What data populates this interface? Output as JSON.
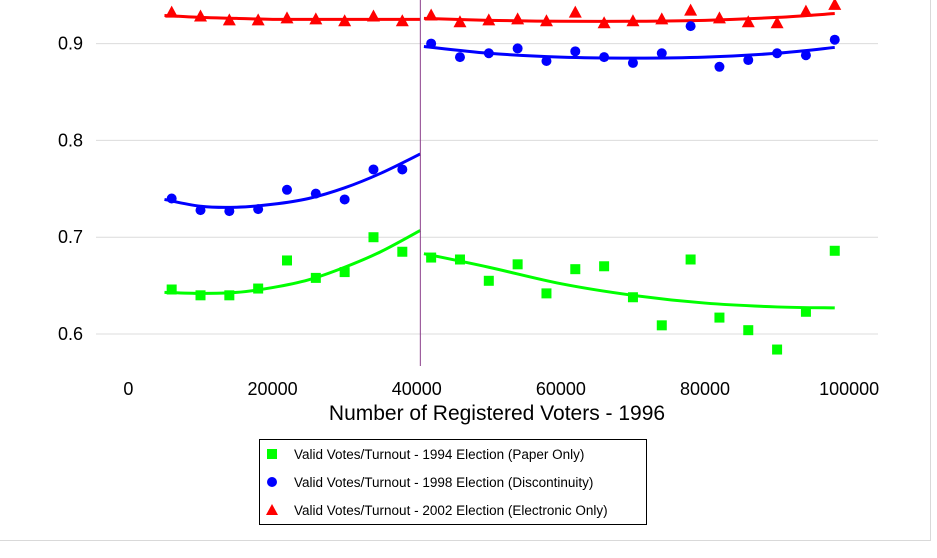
{
  "chart_data": {
    "type": "scatter",
    "xlabel": "Number of Registered Voters - 1996",
    "ylabel": "",
    "xlim": [
      -4500,
      104000
    ],
    "ylim": [
      0.567,
      0.945
    ],
    "x_ticks": [
      0,
      20000,
      40000,
      60000,
      80000,
      100000
    ],
    "x_tick_labels": [
      "0",
      "20000",
      "40000",
      "60000",
      "80000",
      "100000"
    ],
    "y_ticks": [
      0.6,
      0.7,
      0.8,
      0.9
    ],
    "y_tick_labels": [
      "0.6",
      "0.7",
      "0.8",
      "0.9"
    ],
    "grid": "horizontal",
    "discontinuity_x": 40500,
    "legend_position": "bottom",
    "series": [
      {
        "name": "Valid Votes/Turnout - 1994 Election (Paper Only)",
        "color": "#00ff00",
        "marker": "square",
        "points": [
          [
            6000,
            0.646
          ],
          [
            10000,
            0.64
          ],
          [
            14000,
            0.64
          ],
          [
            18000,
            0.647
          ],
          [
            22000,
            0.676
          ],
          [
            26000,
            0.658
          ],
          [
            30000,
            0.664
          ],
          [
            34000,
            0.7
          ],
          [
            38000,
            0.685
          ],
          [
            42000,
            0.679
          ],
          [
            46000,
            0.677
          ],
          [
            50000,
            0.655
          ],
          [
            54000,
            0.672
          ],
          [
            58000,
            0.642
          ],
          [
            62000,
            0.667
          ],
          [
            66000,
            0.67
          ],
          [
            70000,
            0.638
          ],
          [
            74000,
            0.609
          ],
          [
            78000,
            0.677
          ],
          [
            82000,
            0.617
          ],
          [
            86000,
            0.604
          ],
          [
            90000,
            0.584
          ],
          [
            94000,
            0.623
          ],
          [
            98000,
            0.686
          ]
        ],
        "fit_left": [
          [
            5000,
            0.643
          ],
          [
            10000,
            0.642
          ],
          [
            15000,
            0.643
          ],
          [
            20000,
            0.648
          ],
          [
            25000,
            0.656
          ],
          [
            30000,
            0.669
          ],
          [
            35000,
            0.685
          ],
          [
            40500,
            0.707
          ]
        ],
        "fit_right": [
          [
            41000,
            0.683
          ],
          [
            50000,
            0.669
          ],
          [
            60000,
            0.652
          ],
          [
            70000,
            0.64
          ],
          [
            80000,
            0.632
          ],
          [
            90000,
            0.628
          ],
          [
            98000,
            0.627
          ]
        ]
      },
      {
        "name": "Valid Votes/Turnout - 1998 Election (Discontinuity)",
        "color": "#0000ff",
        "marker": "circle",
        "points": [
          [
            6000,
            0.74
          ],
          [
            10000,
            0.728
          ],
          [
            14000,
            0.727
          ],
          [
            18000,
            0.729
          ],
          [
            22000,
            0.749
          ],
          [
            26000,
            0.745
          ],
          [
            30000,
            0.739
          ],
          [
            34000,
            0.77
          ],
          [
            38000,
            0.77
          ],
          [
            42000,
            0.9
          ],
          [
            46000,
            0.886
          ],
          [
            50000,
            0.89
          ],
          [
            54000,
            0.895
          ],
          [
            58000,
            0.882
          ],
          [
            62000,
            0.892
          ],
          [
            66000,
            0.886
          ],
          [
            70000,
            0.88
          ],
          [
            74000,
            0.89
          ],
          [
            78000,
            0.918
          ],
          [
            82000,
            0.876
          ],
          [
            86000,
            0.883
          ],
          [
            90000,
            0.89
          ],
          [
            94000,
            0.888
          ],
          [
            98000,
            0.904
          ]
        ],
        "fit_left": [
          [
            5000,
            0.739
          ],
          [
            10000,
            0.732
          ],
          [
            15000,
            0.731
          ],
          [
            20000,
            0.734
          ],
          [
            25000,
            0.74
          ],
          [
            30000,
            0.751
          ],
          [
            35000,
            0.766
          ],
          [
            40500,
            0.786
          ]
        ],
        "fit_right": [
          [
            41000,
            0.897
          ],
          [
            50000,
            0.89
          ],
          [
            60000,
            0.886
          ],
          [
            70000,
            0.885
          ],
          [
            80000,
            0.886
          ],
          [
            90000,
            0.89
          ],
          [
            98000,
            0.896
          ]
        ]
      },
      {
        "name": "Valid Votes/Turnout - 2002 Election (Electronic Only)",
        "color": "#ff0000",
        "marker": "triangle",
        "points": [
          [
            6000,
            0.932
          ],
          [
            10000,
            0.928
          ],
          [
            14000,
            0.924
          ],
          [
            18000,
            0.924
          ],
          [
            22000,
            0.926
          ],
          [
            26000,
            0.925
          ],
          [
            30000,
            0.923
          ],
          [
            34000,
            0.928
          ],
          [
            38000,
            0.923
          ],
          [
            42000,
            0.929
          ],
          [
            46000,
            0.922
          ],
          [
            50000,
            0.924
          ],
          [
            54000,
            0.925
          ],
          [
            58000,
            0.923
          ],
          [
            62000,
            0.932
          ],
          [
            66000,
            0.921
          ],
          [
            70000,
            0.923
          ],
          [
            74000,
            0.925
          ],
          [
            78000,
            0.934
          ],
          [
            82000,
            0.926
          ],
          [
            86000,
            0.922
          ],
          [
            90000,
            0.921
          ],
          [
            94000,
            0.933
          ],
          [
            98000,
            0.94
          ]
        ],
        "fit_left": [
          [
            5000,
            0.929
          ],
          [
            10000,
            0.927
          ],
          [
            15000,
            0.926
          ],
          [
            20000,
            0.925
          ],
          [
            25000,
            0.925
          ],
          [
            30000,
            0.925
          ],
          [
            35000,
            0.925
          ],
          [
            40500,
            0.925
          ]
        ],
        "fit_right": [
          [
            41000,
            0.926
          ],
          [
            50000,
            0.924
          ],
          [
            60000,
            0.923
          ],
          [
            70000,
            0.923
          ],
          [
            80000,
            0.924
          ],
          [
            90000,
            0.927
          ],
          [
            98000,
            0.931
          ]
        ]
      }
    ]
  }
}
